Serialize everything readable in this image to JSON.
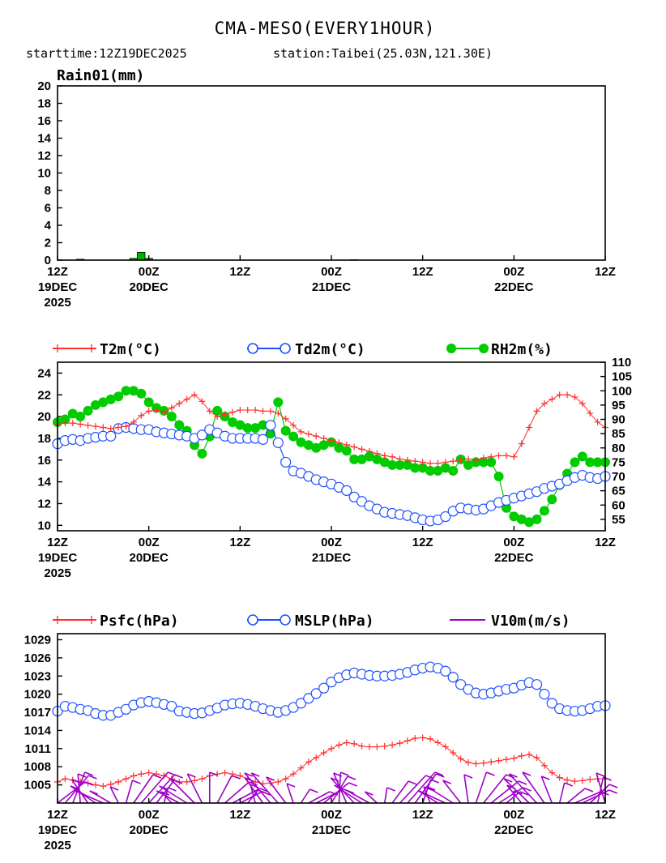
{
  "title": "CMA-MESO(EVERY1HOUR)",
  "subtitle_start": "starttime:12Z19DEC2025",
  "subtitle_station": "station:Taibei(25.03N,121.30E)",
  "x_axis": {
    "tick_hours": [
      0,
      12,
      24,
      36,
      48,
      60,
      72
    ],
    "tick_labels": [
      "12Z",
      "00Z",
      "12Z",
      "00Z",
      "12Z",
      "00Z",
      "12Z"
    ],
    "date_labels": [
      {
        "hour": 0,
        "text": "19DEC"
      },
      {
        "hour": 12,
        "text": "20DEC"
      },
      {
        "hour": 36,
        "text": "21DEC"
      },
      {
        "hour": 60,
        "text": "22DEC"
      }
    ],
    "year_label": "2025"
  },
  "colors": {
    "rain": "#00b000",
    "t2m": "#ff3030",
    "td2m": "#1e50ff",
    "rh2m": "#00cc00",
    "psfc": "#ff3030",
    "mslp": "#1e50ff",
    "wind": "#a000c8"
  },
  "chart_data": [
    {
      "type": "bar",
      "name": "rain",
      "title": "Rain01(mm)",
      "x_hours": [
        3,
        10,
        11,
        12,
        39
      ],
      "values": [
        0.1,
        0.2,
        0.9,
        0.2,
        0.05
      ],
      "ylim": [
        0,
        20
      ],
      "yticks": [
        0,
        2,
        4,
        6,
        8,
        10,
        12,
        14,
        16,
        18,
        20
      ]
    },
    {
      "type": "line",
      "name": "temperature",
      "legend": [
        "T2m(°C)",
        "Td2m(°C)",
        "RH2m(%)"
      ],
      "left_ylim": [
        9.5,
        25
      ],
      "left_yticks": [
        10,
        12,
        14,
        16,
        18,
        20,
        22,
        24
      ],
      "right_ylim": [
        51,
        110
      ],
      "right_yticks": [
        55,
        60,
        65,
        70,
        75,
        80,
        85,
        90,
        95,
        100,
        105,
        110
      ],
      "x_hours": [
        0,
        1,
        2,
        3,
        4,
        5,
        6,
        7,
        8,
        9,
        10,
        11,
        12,
        13,
        14,
        15,
        16,
        17,
        18,
        19,
        20,
        21,
        22,
        23,
        24,
        25,
        26,
        27,
        28,
        29,
        30,
        31,
        32,
        33,
        34,
        35,
        36,
        37,
        38,
        39,
        40,
        41,
        42,
        43,
        44,
        45,
        46,
        47,
        48,
        49,
        50,
        51,
        52,
        53,
        54,
        55,
        56,
        57,
        58,
        59,
        60,
        61,
        62,
        63,
        64,
        65,
        66,
        67,
        68,
        69,
        70,
        71,
        72
      ],
      "series": [
        {
          "name": "T2m(°C)",
          "axis": "left",
          "values": [
            19.3,
            19.4,
            19.4,
            19.3,
            19.2,
            19.1,
            19.0,
            18.9,
            19.0,
            19.1,
            19.5,
            20.1,
            20.5,
            20.6,
            20.4,
            20.8,
            21.2,
            21.6,
            22.0,
            21.4,
            20.5,
            20.0,
            20.2,
            20.4,
            20.6,
            20.6,
            20.6,
            20.5,
            20.5,
            20.3,
            19.8,
            19.2,
            18.6,
            18.4,
            18.2,
            18.0,
            17.8,
            17.6,
            17.4,
            17.2,
            17.0,
            16.8,
            16.6,
            16.4,
            16.3,
            16.1,
            16.0,
            15.9,
            15.8,
            15.7,
            15.7,
            15.8,
            15.9,
            16.0,
            16.1,
            16.0,
            16.2,
            16.3,
            16.4,
            16.4,
            16.3,
            17.5,
            19.0,
            20.5,
            21.2,
            21.6,
            22.0,
            22.0,
            21.8,
            21.2,
            20.3,
            19.5,
            19.0
          ]
        },
        {
          "name": "Td2m(°C)",
          "axis": "left",
          "values": [
            17.5,
            17.8,
            17.9,
            17.8,
            18.0,
            18.1,
            18.2,
            18.2,
            18.9,
            19.0,
            18.9,
            18.8,
            18.8,
            18.6,
            18.5,
            18.4,
            18.3,
            18.2,
            18.0,
            18.3,
            18.8,
            18.5,
            18.2,
            18.0,
            18.0,
            18.0,
            18.0,
            17.9,
            19.2,
            17.6,
            15.8,
            15.0,
            14.8,
            14.5,
            14.2,
            14.0,
            13.8,
            13.5,
            13.2,
            12.6,
            12.2,
            11.8,
            11.5,
            11.2,
            11.1,
            11.0,
            10.9,
            10.7,
            10.5,
            10.4,
            10.5,
            10.8,
            11.3,
            11.6,
            11.5,
            11.4,
            11.5,
            11.8,
            12.1,
            12.3,
            12.5,
            12.7,
            12.9,
            13.1,
            13.4,
            13.6,
            13.8,
            14.1,
            14.4,
            14.6,
            14.4,
            14.3,
            14.5
          ]
        },
        {
          "name": "RH2m(%)",
          "axis": "right",
          "values": [
            89,
            90,
            92,
            91,
            93,
            95,
            96,
            97,
            98,
            100,
            100,
            99,
            96,
            94,
            93,
            91,
            88,
            86,
            81,
            78,
            84,
            93,
            91,
            89,
            88,
            87,
            87,
            88,
            85,
            96,
            86,
            84,
            82,
            81,
            80,
            81,
            82,
            80,
            79,
            76,
            76,
            77,
            76,
            75,
            74,
            74,
            74,
            73,
            73,
            72,
            72,
            73,
            72,
            76,
            74,
            75,
            75,
            75,
            70,
            59,
            56,
            55,
            54,
            55,
            58,
            62,
            67,
            71,
            75,
            77,
            75,
            75,
            75
          ]
        }
      ]
    },
    {
      "type": "line",
      "name": "pressure",
      "legend": [
        "Psfc(hPa)",
        "MSLP(hPa)",
        "V10m(m/s)"
      ],
      "ylim": [
        1002,
        1030
      ],
      "yticks": [
        1005,
        1008,
        1011,
        1014,
        1017,
        1020,
        1023,
        1026,
        1029
      ],
      "x_hours": [
        0,
        1,
        2,
        3,
        4,
        5,
        6,
        7,
        8,
        9,
        10,
        11,
        12,
        13,
        14,
        15,
        16,
        17,
        18,
        19,
        20,
        21,
        22,
        23,
        24,
        25,
        26,
        27,
        28,
        29,
        30,
        31,
        32,
        33,
        34,
        35,
        36,
        37,
        38,
        39,
        40,
        41,
        42,
        43,
        44,
        45,
        46,
        47,
        48,
        49,
        50,
        51,
        52,
        53,
        54,
        55,
        56,
        57,
        58,
        59,
        60,
        61,
        62,
        63,
        64,
        65,
        66,
        67,
        68,
        69,
        70,
        71,
        72
      ],
      "series": [
        {
          "name": "Psfc(hPa)",
          "values": [
            1005.5,
            1006,
            1005.8,
            1005.5,
            1005.3,
            1005.0,
            1004.8,
            1005.1,
            1005.5,
            1006.0,
            1006.5,
            1006.8,
            1007.0,
            1006.8,
            1006.5,
            1006.0,
            1005.5,
            1005.5,
            1005.7,
            1006.0,
            1006.5,
            1006.8,
            1007.0,
            1006.8,
            1006.5,
            1006.0,
            1005.5,
            1005.2,
            1005.3,
            1005.5,
            1006.0,
            1006.8,
            1007.8,
            1008.8,
            1009.5,
            1010.3,
            1011.0,
            1011.6,
            1012.0,
            1011.8,
            1011.4,
            1011.3,
            1011.3,
            1011.4,
            1011.6,
            1011.9,
            1012.3,
            1012.7,
            1012.8,
            1012.6,
            1012.0,
            1011.3,
            1010.3,
            1009.3,
            1008.7,
            1008.5,
            1008.6,
            1008.8,
            1009.0,
            1009.2,
            1009.4,
            1009.8,
            1010.0,
            1009.5,
            1008.2,
            1007.0,
            1006.2,
            1005.8,
            1005.6,
            1005.7,
            1005.9,
            1006.0,
            1006.0
          ]
        },
        {
          "name": "MSLP(hPa)",
          "values": [
            1017.2,
            1018.0,
            1017.8,
            1017.5,
            1017.3,
            1016.8,
            1016.5,
            1016.5,
            1017.0,
            1017.5,
            1018.2,
            1018.6,
            1018.8,
            1018.6,
            1018.3,
            1018.0,
            1017.2,
            1017.0,
            1016.8,
            1016.9,
            1017.3,
            1017.7,
            1018.2,
            1018.4,
            1018.5,
            1018.3,
            1018.0,
            1017.6,
            1017.3,
            1017.0,
            1017.3,
            1017.8,
            1018.5,
            1019.3,
            1020.1,
            1021.0,
            1022.0,
            1022.7,
            1023.2,
            1023.5,
            1023.3,
            1023.1,
            1023.0,
            1023.0,
            1023.1,
            1023.3,
            1023.6,
            1024.0,
            1024.3,
            1024.5,
            1024.3,
            1023.8,
            1022.8,
            1021.6,
            1020.8,
            1020.2,
            1020.0,
            1020.2,
            1020.5,
            1020.8,
            1021.0,
            1021.5,
            1021.9,
            1021.6,
            1020.0,
            1018.5,
            1017.6,
            1017.3,
            1017.2,
            1017.3,
            1017.6,
            1018.0,
            1018.1
          ]
        },
        {
          "name": "V10m(m/s)",
          "values": []
        }
      ]
    }
  ]
}
